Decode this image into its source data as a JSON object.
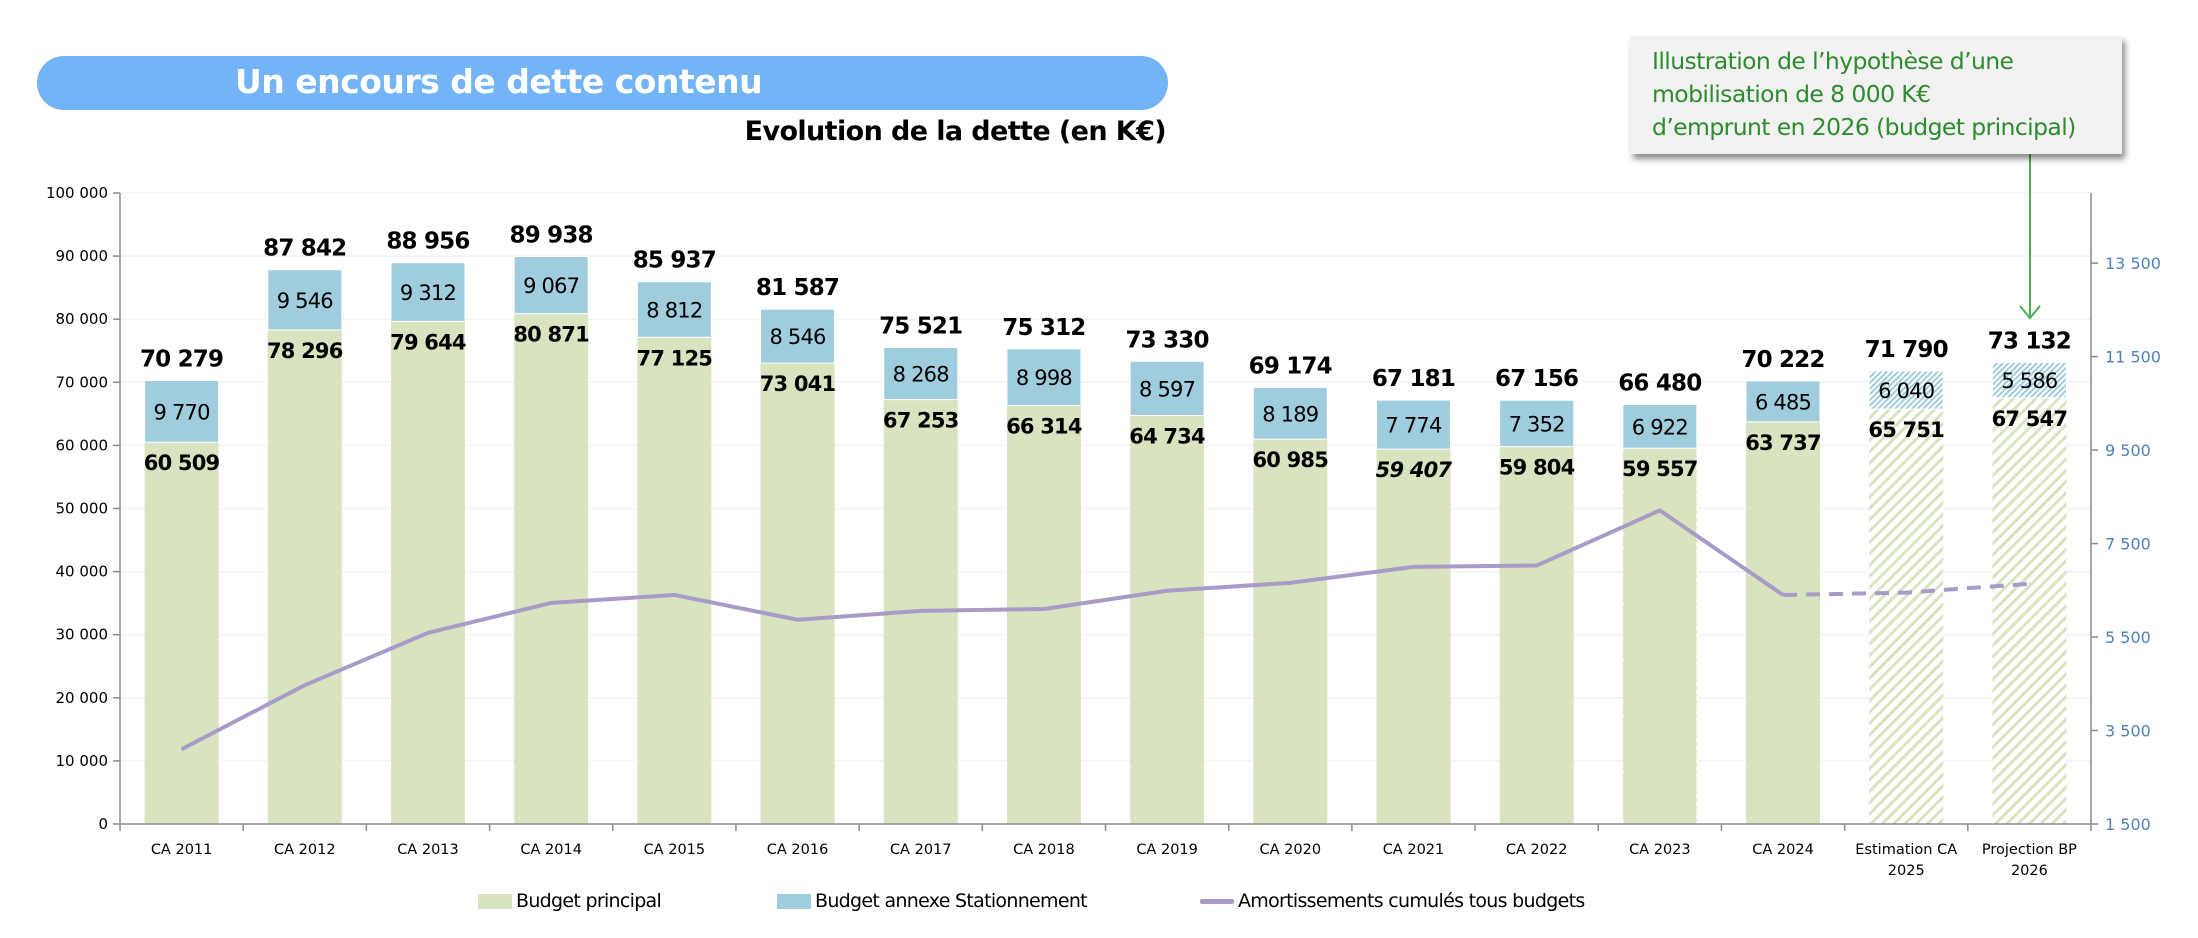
{
  "banner": {
    "title": "Un encours de dette contenu"
  },
  "callout": {
    "text": "Illustration de l’hypothèse d’une\nmobilisation de 8 000 K€\nd’emprunt en 2026 (budget principal)"
  },
  "colors": {
    "banner": "#73B4F6",
    "principal": "#D8E4BF",
    "annexe": "#9FCDDE",
    "amortissements": "#A99BC7",
    "callout_text": "#2E8B2E",
    "right_axis": "#4F81BD"
  },
  "chart_data": {
    "type": "bar",
    "title": "Evolution de la dette (en K€)",
    "stacked": true,
    "categories": [
      "CA 2011",
      "CA 2012",
      "CA 2013",
      "CA 2014",
      "CA 2015",
      "CA 2016",
      "CA 2017",
      "CA 2018",
      "CA 2019",
      "CA 2020",
      "CA 2021",
      "CA 2022",
      "CA 2023",
      "CA 2024",
      "Estimation CA 2025",
      "Projection BP 2026"
    ],
    "category_lines": [
      [
        "CA 2011"
      ],
      [
        "CA 2012"
      ],
      [
        "CA 2013"
      ],
      [
        "CA 2014"
      ],
      [
        "CA 2015"
      ],
      [
        "CA 2016"
      ],
      [
        "CA 2017"
      ],
      [
        "CA 2018"
      ],
      [
        "CA 2019"
      ],
      [
        "CA 2020"
      ],
      [
        "CA 2021"
      ],
      [
        "CA 2022"
      ],
      [
        "CA 2023"
      ],
      [
        "CA 2024"
      ],
      [
        "Estimation CA",
        "2025"
      ],
      [
        "Projection BP",
        "2026"
      ]
    ],
    "series": [
      {
        "name": "Budget principal",
        "type": "bar",
        "axis": "left",
        "values": [
          60509,
          78296,
          79644,
          80871,
          77125,
          73041,
          67253,
          66314,
          64734,
          60985,
          59407,
          59804,
          59557,
          63737,
          65751,
          67547
        ],
        "labels": [
          "60 509",
          "78 296",
          "79 644",
          "80 871",
          "77 125",
          "73 041",
          "67 253",
          "66 314",
          "64 734",
          "60 985",
          "59 407",
          "59 804",
          "59 557",
          "63 737",
          "65 751",
          "67 547"
        ]
      },
      {
        "name": "Budget annexe Stationnement",
        "type": "bar",
        "axis": "left",
        "values": [
          9770,
          9546,
          9312,
          9067,
          8812,
          8546,
          8268,
          8998,
          8597,
          8189,
          7774,
          7352,
          6922,
          6485,
          6040,
          5586
        ],
        "labels": [
          "9 770",
          "9 546",
          "9 312",
          "9 067",
          "8 812",
          "8 546",
          "8 268",
          "8 998",
          "8 597",
          "8 189",
          "7 774",
          "7 352",
          "6 922",
          "6 485",
          "6 040",
          "5 586"
        ]
      },
      {
        "name": "Amortissements cumulés tous budgets",
        "type": "line",
        "axis": "right",
        "values": [
          3100,
          4470,
          5590,
          6230,
          6400,
          5870,
          6060,
          6100,
          6490,
          6660,
          7000,
          7030,
          8210,
          6400,
          6450,
          6640
        ],
        "dashed_from_index": 13
      }
    ],
    "totals": [
      70279,
      87842,
      88956,
      89938,
      85937,
      81587,
      75521,
      75312,
      73330,
      69174,
      67181,
      67156,
      66480,
      70222,
      71790,
      73132
    ],
    "total_labels": [
      "70 279",
      "87 842",
      "88 956",
      "89 938",
      "85 937",
      "81 587",
      "75 521",
      "75 312",
      "73 330",
      "69 174",
      "67 181",
      "67 156",
      "66 480",
      "70 222",
      "71 790",
      "73 132"
    ],
    "projected_indices": [
      14,
      15
    ],
    "italic_principal_indices": [
      10
    ],
    "left_axis": {
      "ylim": [
        0,
        100000
      ],
      "ticks": [
        0,
        10000,
        20000,
        30000,
        40000,
        50000,
        60000,
        70000,
        80000,
        90000,
        100000
      ],
      "tick_labels": [
        "0",
        "10 000",
        "20 000",
        "30 000",
        "40 000",
        "50 000",
        "60 000",
        "70 000",
        "80 000",
        "90 000",
        "100 000"
      ]
    },
    "right_axis": {
      "ylim": [
        1500,
        15000
      ],
      "ticks": [
        1500,
        3500,
        5500,
        7500,
        9500,
        11500,
        13500
      ],
      "tick_labels": [
        "1 500",
        "3 500",
        "5 500",
        "7 500",
        "9 500",
        "11 500",
        "13 500"
      ]
    },
    "grid": true,
    "legend": {
      "position": "bottom",
      "entries": [
        "Budget principal",
        "Budget annexe Stationnement",
        "Amortissements cumulés tous budgets"
      ]
    }
  }
}
